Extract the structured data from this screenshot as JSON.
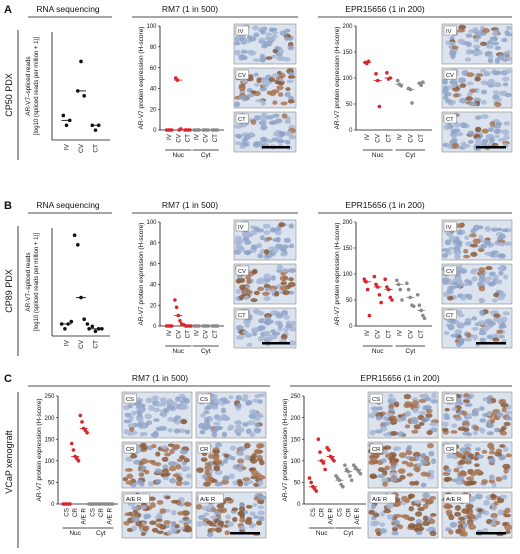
{
  "colors": {
    "nuc": "#d9262b",
    "cyt": "#8a8a8a",
    "ihc_blue": "#b9c8df",
    "ihc_brown": "#9a6a4a"
  },
  "panels": [
    {
      "letter": "A",
      "model": "CP50 PDX",
      "rna": {
        "title": "RNA sequencing",
        "ylabel_line1": "AR-V7–spliced reads",
        "ylabel_line2": "[log10 (spliced reads per million + 1)]",
        "categories": [
          "IV",
          "CV",
          "CT"
        ]
      },
      "rm7": {
        "title": "RM7 (1 in 500)",
        "ylabel": "AR-V7 protein expression (H-score)",
        "yticks": [
          "0",
          "20",
          "40",
          "60",
          "80",
          "100"
        ],
        "groups": [
          "Nuc",
          "Cyt"
        ],
        "xticks": [
          "IV",
          "CV",
          "CT",
          "IV",
          "CV",
          "CT"
        ]
      },
      "rm7_images": [
        "IV",
        "CV",
        "CT"
      ],
      "epr": {
        "title": "EPR15656 (1 in 200)",
        "ylabel": "AR-V7 protein expression (H-score)",
        "yticks": [
          "0",
          "50",
          "100",
          "150",
          "200"
        ],
        "groups": [
          "Nuc",
          "Cyt"
        ],
        "xticks": [
          "IV",
          "CV",
          "CT",
          "IV",
          "CV",
          "CT"
        ]
      },
      "epr_images": [
        "IV",
        "CV",
        "CT"
      ]
    },
    {
      "letter": "B",
      "model": "CP89 PDX",
      "rna": {
        "title": "RNA sequencing",
        "ylabel_line1": "AR-V7–spliced reads",
        "ylabel_line2": "[log10 (spliced reads per million + 1)]",
        "categories": [
          "IV",
          "CV",
          "CT"
        ]
      },
      "rm7": {
        "title": "RM7 (1 in 500)",
        "ylabel": "AR-V7 protein expression (H-score)",
        "yticks": [
          "0",
          "20",
          "40",
          "60",
          "80",
          "100"
        ],
        "groups": [
          "Nuc",
          "Cyt"
        ],
        "xticks": [
          "IV",
          "CV",
          "CT",
          "IV",
          "CV",
          "CT"
        ]
      },
      "rm7_images": [
        "IV",
        "CV",
        "CT"
      ],
      "epr": {
        "title": "EPR15656 (1 in 200)",
        "ylabel": "AR-V7 protein expression (H-score)",
        "yticks": [
          "0",
          "50",
          "100",
          "150",
          "200"
        ],
        "groups": [
          "Nuc",
          "Cyt"
        ],
        "xticks": [
          "IV",
          "CV",
          "CT",
          "IV",
          "CV",
          "CT"
        ]
      },
      "epr_images": [
        "IV",
        "CV",
        "CT"
      ]
    },
    {
      "letter": "C",
      "model": "VCaP xenograft",
      "rm7": {
        "title": "RM7 (1 in 500)",
        "ylabel": "AR-V7 protein expression (H-score)",
        "yticks": [
          "0",
          "50",
          "100",
          "150",
          "200",
          "250"
        ],
        "groups": [
          "Nuc",
          "Cyt"
        ],
        "xticks": [
          "CS",
          "CR",
          "A/E R",
          "CS",
          "CR",
          "A/E R"
        ]
      },
      "rm7_images": [
        "CS",
        "CR",
        "A/E R"
      ],
      "epr": {
        "title": "EPR15656 (1 in 200)",
        "ylabel": "AR-V7 protein expression (H-score)",
        "yticks": [
          "0",
          "50",
          "100",
          "150",
          "200",
          "250"
        ],
        "groups": [
          "Nuc",
          "Cyt"
        ],
        "xticks": [
          "CS",
          "CR",
          "A/E R",
          "CS",
          "CR",
          "A/E R"
        ]
      },
      "epr_images": [
        "CS",
        "CR",
        "A/E R"
      ]
    }
  ],
  "chart_data": [
    {
      "type": "scatter",
      "panel": "A",
      "title": "RNA sequencing",
      "ylabel": "AR-V7–spliced reads [log10 (spliced reads per million + 1)]",
      "categories": [
        "IV",
        "CV",
        "CT"
      ],
      "series": [
        {
          "values": [
            [
              0.05,
              0.03,
              0.04
            ],
            [
              0.1,
              0.16,
              0.09
            ],
            [
              0.03,
              0.02,
              0.03
            ]
          ],
          "medians": [
            0.04,
            0.1,
            0.03
          ]
        }
      ],
      "ylim": [
        0,
        0.22
      ]
    },
    {
      "type": "scatter",
      "panel": "A",
      "title": "RM7 (1 in 500)",
      "ylabel": "AR-V7 protein expression (H-score)",
      "ylim": [
        0,
        100
      ],
      "categories": [
        "IV",
        "CV",
        "CT",
        "IV",
        "CV",
        "CT"
      ],
      "series": [
        {
          "name": "Nuc",
          "values": [
            [
              0,
              0,
              0,
              0
            ],
            [
              50,
              48,
              0,
              1
            ],
            [
              0,
              0,
              0,
              0
            ]
          ]
        },
        {
          "name": "Cyt",
          "values": [
            [
              0,
              0,
              0,
              0
            ],
            [
              0,
              0,
              0,
              0
            ],
            [
              0,
              0,
              0,
              0
            ]
          ]
        }
      ]
    },
    {
      "type": "scatter",
      "panel": "A",
      "title": "EPR15656 (1 in 200)",
      "ylabel": "AR-V7 protein expression (H-score)",
      "ylim": [
        0,
        200
      ],
      "categories": [
        "IV",
        "CV",
        "CT",
        "IV",
        "CV",
        "CT"
      ],
      "series": [
        {
          "name": "Nuc",
          "values": [
            [
              130,
              128,
              132
            ],
            [
              108,
              95,
              45
            ],
            [
              110,
              98,
              100
            ]
          ]
        },
        {
          "name": "Cyt",
          "values": [
            [
              95,
              88,
              85
            ],
            [
              80,
              78,
              52
            ],
            [
              90,
              86,
              92
            ]
          ]
        }
      ]
    },
    {
      "type": "scatter",
      "panel": "B",
      "title": "RNA sequencing",
      "ylabel": "AR-V7–spliced reads [log10 (spliced reads per million + 1)]",
      "categories": [
        "IV",
        "CV",
        "CT"
      ],
      "series": [
        {
          "values": [
            [
              0.05,
              0.03,
              0.05,
              0.06
            ],
            [
              0.42,
              0.38,
              0.16,
              0.07,
              0.05
            ],
            [
              0.03,
              0.04,
              0.02,
              0.03,
              0.03
            ]
          ],
          "medians": [
            0.05,
            0.16,
            0.03
          ]
        }
      ],
      "ylim": [
        0,
        0.45
      ]
    },
    {
      "type": "scatter",
      "panel": "B",
      "title": "RM7 (1 in 500)",
      "ylabel": "AR-V7 protein expression (H-score)",
      "ylim": [
        0,
        100
      ],
      "categories": [
        "IV",
        "CV",
        "CT",
        "IV",
        "CV",
        "CT"
      ],
      "series": [
        {
          "name": "Nuc",
          "values": [
            [
              0,
              0,
              0,
              0
            ],
            [
              25,
              18,
              10,
              5,
              2
            ],
            [
              1,
              0,
              0,
              0,
              0
            ]
          ]
        },
        {
          "name": "Cyt",
          "values": [
            [
              0,
              0,
              0,
              0
            ],
            [
              0,
              0,
              0,
              0
            ],
            [
              0,
              0,
              0,
              0
            ]
          ]
        }
      ]
    },
    {
      "type": "scatter",
      "panel": "B",
      "title": "EPR15656 (1 in 200)",
      "ylabel": "AR-V7 protein expression (H-score)",
      "ylim": [
        0,
        200
      ],
      "categories": [
        "IV",
        "CV",
        "CT",
        "IV",
        "CV",
        "CT"
      ],
      "series": [
        {
          "name": "Nuc",
          "values": [
            [
              90,
              85,
              70,
              20
            ],
            [
              95,
              80,
              75,
              60,
              45
            ],
            [
              90,
              75,
              70,
              55,
              50
            ]
          ]
        },
        {
          "name": "Cyt",
          "values": [
            [
              88,
              80,
              70,
              50
            ],
            [
              82,
              70,
              55,
              40,
              38
            ],
            [
              60,
              40,
              30,
              20,
              15
            ]
          ]
        }
      ]
    },
    {
      "type": "scatter",
      "panel": "C",
      "title": "RM7 (1 in 500)",
      "ylabel": "AR-V7 protein expression (H-score)",
      "ylim": [
        0,
        250
      ],
      "categories": [
        "CS",
        "CR",
        "A/E R",
        "CS",
        "CR",
        "A/E R"
      ],
      "series": [
        {
          "name": "Nuc",
          "values": [
            [
              0,
              0,
              0,
              0,
              0
            ],
            [
              140,
              125,
              110,
              105,
              100
            ],
            [
              205,
              190,
              175,
              170,
              165
            ]
          ]
        },
        {
          "name": "Cyt",
          "values": [
            [
              0,
              0,
              0,
              0,
              0
            ],
            [
              0,
              0,
              0,
              0,
              0
            ],
            [
              0,
              0,
              0,
              0,
              0
            ]
          ]
        }
      ]
    },
    {
      "type": "scatter",
      "panel": "C",
      "title": "EPR15656 (1 in 200)",
      "ylabel": "AR-V7 protein expression (H-score)",
      "ylim": [
        0,
        250
      ],
      "categories": [
        "CS",
        "CR",
        "A/E R",
        "CS",
        "CR",
        "A/E R"
      ],
      "series": [
        {
          "name": "Nuc",
          "values": [
            [
              60,
              50,
              40,
              35,
              30
            ],
            [
              150,
              120,
              100,
              95,
              80
            ],
            [
              130,
              125,
              110,
              105,
              100
            ]
          ]
        },
        {
          "name": "Cyt",
          "values": [
            [
              65,
              60,
              55,
              45,
              40
            ],
            [
              90,
              80,
              75,
              65,
              55
            ],
            [
              90,
              85,
              80,
              75,
              70
            ]
          ]
        }
      ]
    }
  ]
}
